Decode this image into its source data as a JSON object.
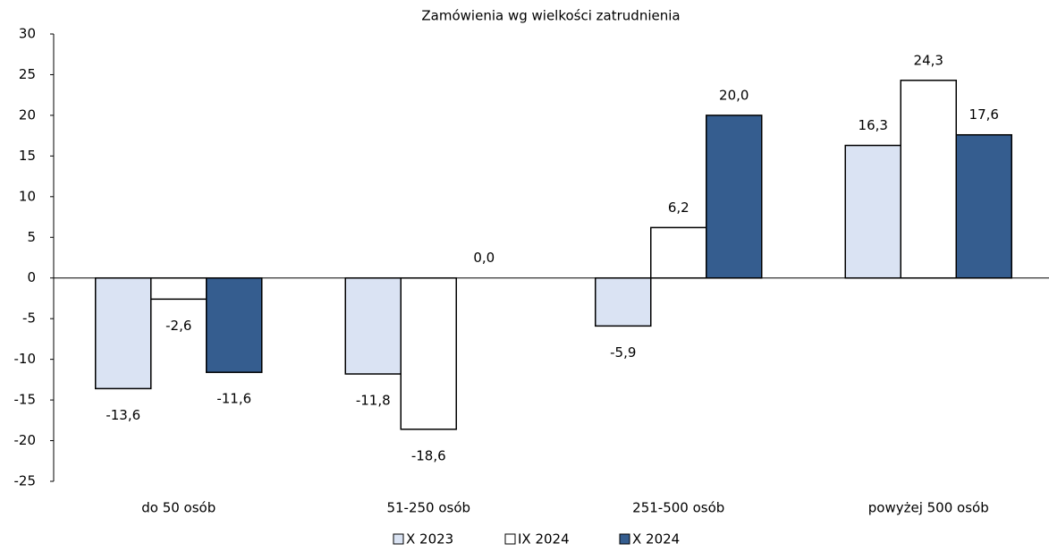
{
  "chart_data": {
    "type": "bar",
    "title": "Zamówienia wg wielkości zatrudnienia",
    "categories": [
      "do 50 osób",
      "51-250 osób",
      "251-500 osób",
      "powyżej 500 osób"
    ],
    "series": [
      {
        "name": "X 2023",
        "color": "#dae3f3",
        "values": [
          -13.6,
          -11.8,
          -5.9,
          16.3
        ],
        "value_labels": [
          "-13,6",
          "-11,8",
          "-5,9",
          "16,3"
        ]
      },
      {
        "name": "IX 2024",
        "color": "#ffffff",
        "values": [
          -2.6,
          -18.6,
          6.2,
          24.3
        ],
        "value_labels": [
          "-2,6",
          "-18,6",
          "6,2",
          "24,3"
        ]
      },
      {
        "name": "X 2024",
        "color": "#355d8f",
        "values": [
          -11.6,
          0.0,
          20.0,
          17.6
        ],
        "value_labels": [
          "-11,6",
          "0,0",
          "20,0",
          "17,6"
        ]
      }
    ],
    "ylim": [
      -25,
      30
    ],
    "yticks": [
      30,
      25,
      20,
      15,
      10,
      5,
      0,
      -5,
      -10,
      -15,
      -20,
      -25
    ],
    "legend": "bottom"
  }
}
